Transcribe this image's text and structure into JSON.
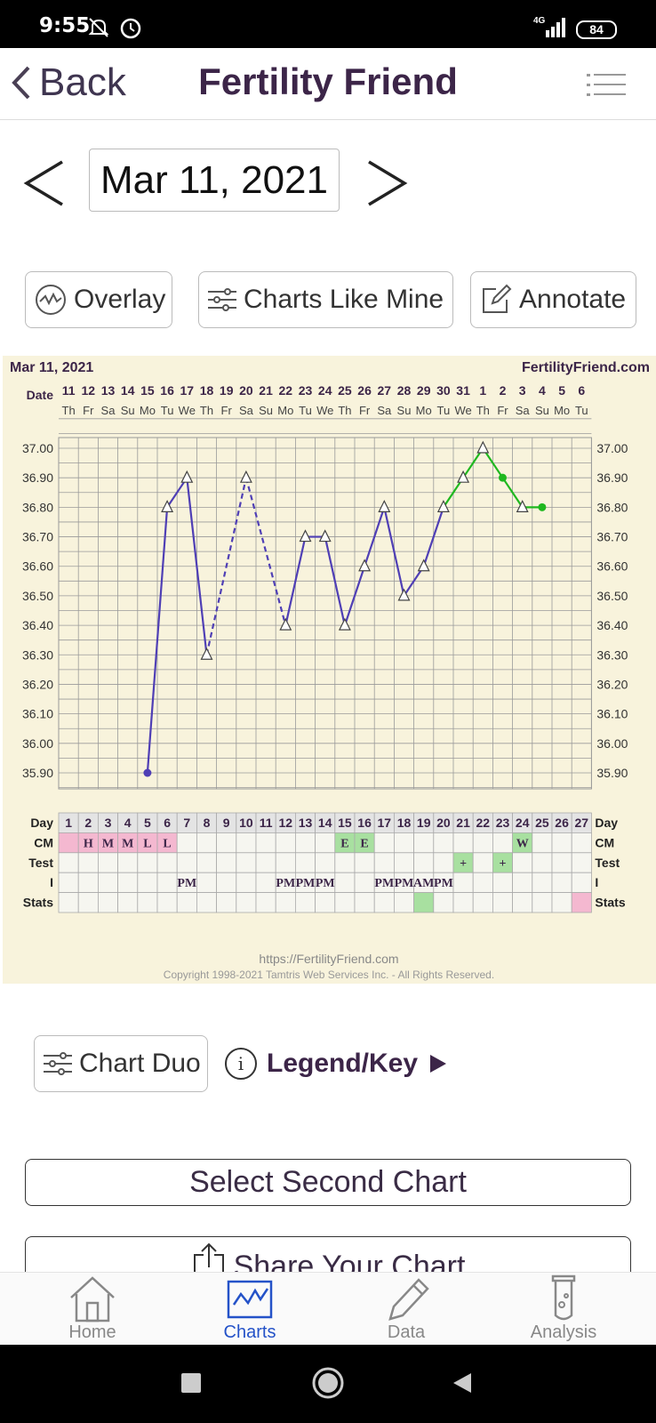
{
  "status_bar": {
    "time": "9:55",
    "network": "4G",
    "battery": "84"
  },
  "nav": {
    "back_label": "Back",
    "title": "Fertility Friend"
  },
  "date_selector": {
    "date": "Mar 11, 2021"
  },
  "toolbar": {
    "overlay": "Overlay",
    "charts_like_mine": "Charts Like Mine",
    "annotate": "Annotate"
  },
  "chart": {
    "header_date": "Mar 11, 2021",
    "site": "FertilityFriend.com",
    "footer_url": "https://FertilityFriend.com",
    "footer_copyright": "Copyright 1998-2021 Tamtris Web Services Inc. - All Rights Reserved.",
    "row_labels": [
      "Date",
      "Day",
      "CM",
      "Test",
      "I",
      "Stats"
    ],
    "colors": {
      "background": "#f8f3dc",
      "line": "#4f3fb5",
      "green": "#1fb81f",
      "pink": "#f4b8d0",
      "green_cell": "#a8e0a0"
    }
  },
  "chart_data": {
    "type": "line",
    "dates": [
      "11",
      "12",
      "13",
      "14",
      "15",
      "16",
      "17",
      "18",
      "19",
      "20",
      "21",
      "22",
      "23",
      "24",
      "25",
      "26",
      "27",
      "28",
      "29",
      "30",
      "31",
      "1",
      "2",
      "3",
      "4",
      "5",
      "6"
    ],
    "weekdays": [
      "Th",
      "Fr",
      "Sa",
      "Su",
      "Mo",
      "Tu",
      "We",
      "Th",
      "Fr",
      "Sa",
      "Su",
      "Mo",
      "Tu",
      "We",
      "Th",
      "Fr",
      "Sa",
      "Su",
      "Mo",
      "Tu",
      "We",
      "Th",
      "Fr",
      "Sa",
      "Su",
      "Mo",
      "Tu"
    ],
    "days": [
      "1",
      "2",
      "3",
      "4",
      "5",
      "6",
      "7",
      "8",
      "9",
      "10",
      "11",
      "12",
      "13",
      "14",
      "15",
      "16",
      "17",
      "18",
      "19",
      "20",
      "21",
      "22",
      "23",
      "24",
      "25",
      "26",
      "27"
    ],
    "yticks": [
      "37.00",
      "36.90",
      "36.80",
      "36.70",
      "36.60",
      "36.50",
      "36.40",
      "36.30",
      "36.20",
      "36.10",
      "36.00",
      "35.90"
    ],
    "ylim": [
      35.9,
      37.0
    ],
    "temps": [
      null,
      null,
      null,
      null,
      35.9,
      36.8,
      36.9,
      36.3,
      null,
      36.9,
      null,
      36.4,
      36.7,
      36.7,
      36.4,
      36.6,
      36.8,
      36.5,
      36.6,
      36.8,
      36.9,
      37.0,
      36.9,
      36.8,
      36.8,
      null,
      null
    ],
    "markers": [
      "",
      "",
      "",
      "",
      "dot",
      "tri",
      "tri",
      "tri",
      "",
      "tri",
      "",
      "tri",
      "tri",
      "tri",
      "tri",
      "tri",
      "tri",
      "tri",
      "tri",
      "tri",
      "tri",
      "tri",
      "dot",
      "tri",
      "dot",
      "",
      ""
    ],
    "dashed_segments": [
      [
        8,
        10
      ],
      [
        10,
        12
      ]
    ],
    "green_from_day": 20,
    "cm": [
      "",
      "H",
      "M",
      "M",
      "L",
      "L",
      "",
      "",
      "",
      "",
      "",
      "",
      "",
      "",
      "E",
      "E",
      "",
      "",
      "",
      "",
      "",
      "",
      "",
      "W",
      "",
      "",
      ""
    ],
    "cm_pink": [
      1,
      2,
      3,
      4,
      5,
      6
    ],
    "cm_green": [
      15,
      16,
      24
    ],
    "test": [
      "",
      "",
      "",
      "",
      "",
      "",
      "",
      "",
      "",
      "",
      "",
      "",
      "",
      "",
      "",
      "",
      "",
      "",
      "",
      "",
      "+",
      "",
      "+",
      "",
      "",
      "",
      ""
    ],
    "intercourse": [
      "",
      "",
      "",
      "",
      "",
      "",
      "PM",
      "",
      "",
      "",
      "",
      "PM",
      "PM",
      "PM",
      "",
      "",
      "PM",
      "PM",
      "AM",
      "PM",
      "",
      "",
      "",
      "",
      "",
      "",
      ""
    ],
    "stats_green": [
      19
    ],
    "stats_pink": [
      27
    ]
  },
  "secondary": {
    "chart_duo": "Chart Duo",
    "legend": "Legend/Key"
  },
  "actions": {
    "select_second": "Select Second Chart",
    "share": "Share Your Chart"
  },
  "tabs": [
    {
      "label": "Home",
      "icon": "home-icon"
    },
    {
      "label": "Charts",
      "icon": "charts-icon",
      "active": true
    },
    {
      "label": "Data",
      "icon": "pencil-icon"
    },
    {
      "label": "Analysis",
      "icon": "test-tube-icon"
    }
  ]
}
